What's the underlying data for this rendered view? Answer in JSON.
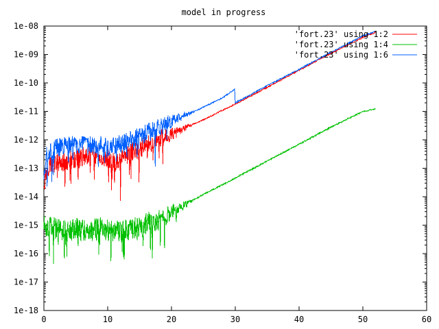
{
  "chart_data": {
    "type": "line",
    "title": "model in progress",
    "xlabel": "",
    "ylabel": "",
    "xlim": [
      0,
      60
    ],
    "ylim": [
      1e-18,
      1e-08
    ],
    "yscale": "log",
    "grid": false,
    "legend_position": "top-right",
    "x_ticks": [
      0,
      10,
      20,
      30,
      40,
      50,
      60
    ],
    "x_tick_labels": [
      "0",
      "10",
      "20",
      "30",
      "40",
      "50",
      "60"
    ],
    "y_ticks": [
      1e-18,
      1e-17,
      1e-16,
      1e-15,
      1e-14,
      1e-13,
      1e-12,
      1e-11,
      1e-10,
      1e-09,
      1e-08
    ],
    "y_tick_labels": [
      "1e-18",
      "1e-17",
      "1e-16",
      "1e-15",
      "1e-14",
      "1e-13",
      "1e-12",
      "1e-11",
      "1e-10",
      "1e-09",
      "1e-08"
    ],
    "series": [
      {
        "name": "'fort.23' using 1:2",
        "color": "#ff0000",
        "noise": 0.35,
        "x": [
          0,
          0.5,
          1,
          2,
          3,
          4,
          5,
          6,
          7,
          8,
          9,
          10,
          11,
          12,
          13,
          14,
          15,
          16,
          17,
          18,
          19,
          20,
          22,
          24,
          26,
          28,
          30,
          35,
          40,
          45,
          50,
          52
        ],
        "y": [
          3e-14,
          1e-13,
          1.5e-13,
          1.5e-13,
          1.5e-13,
          2e-13,
          2e-13,
          2.5e-13,
          3e-13,
          3e-13,
          2.5e-13,
          2e-13,
          1.5e-13,
          2e-13,
          3e-13,
          4e-13,
          5e-13,
          7e-13,
          8e-13,
          1e-12,
          1.3e-12,
          1.6e-12,
          2.5e-12,
          4e-12,
          6.5e-12,
          1.1e-11,
          1.8e-11,
          7e-11,
          2.8e-10,
          1.1e-09,
          4e-09,
          6e-09
        ]
      },
      {
        "name": "'fort.23' using 1:4",
        "color": "#00c000",
        "noise": 0.4,
        "x": [
          0,
          1,
          2,
          3,
          4,
          5,
          6,
          7,
          8,
          9,
          10,
          11,
          12,
          13,
          14,
          15,
          16,
          17,
          18,
          19,
          20,
          22,
          25,
          30,
          35,
          40,
          45,
          50,
          52
        ],
        "y": [
          1e-15,
          8e-16,
          8e-16,
          7e-16,
          6e-16,
          8e-16,
          7e-16,
          6e-16,
          7e-16,
          8e-16,
          7e-16,
          6e-16,
          6e-16,
          7e-16,
          8e-16,
          9e-16,
          1.1e-15,
          1.3e-15,
          1.6e-15,
          2e-15,
          3e-15,
          5e-15,
          1.2e-14,
          4.5e-14,
          1.8e-13,
          7e-13,
          2.8e-12,
          1e-11,
          1.2e-11
        ]
      },
      {
        "name": "'fort.23' using 1:6",
        "color": "#0060ff",
        "noise": 0.35,
        "x": [
          0,
          0.5,
          1,
          2,
          3,
          4,
          5,
          6,
          7,
          8,
          9,
          10,
          11,
          12,
          13,
          14,
          15,
          16,
          17,
          18,
          19,
          20,
          22,
          24,
          26,
          28,
          29.9,
          30,
          35,
          40,
          45,
          50,
          52
        ],
        "y": [
          5e-14,
          3e-13,
          4e-13,
          5e-13,
          6e-13,
          6e-13,
          7e-13,
          6e-13,
          6e-13,
          7e-13,
          6e-13,
          5e-13,
          6e-13,
          7e-13,
          8e-13,
          1e-12,
          1.3e-12,
          1.6e-12,
          2e-12,
          2.5e-12,
          3.5e-12,
          4.5e-12,
          7e-12,
          1.1e-11,
          1.8e-11,
          3e-11,
          6e-11,
          2e-11,
          8e-11,
          3e-10,
          1.2e-09,
          4.5e-09,
          6.5e-09
        ]
      }
    ]
  }
}
